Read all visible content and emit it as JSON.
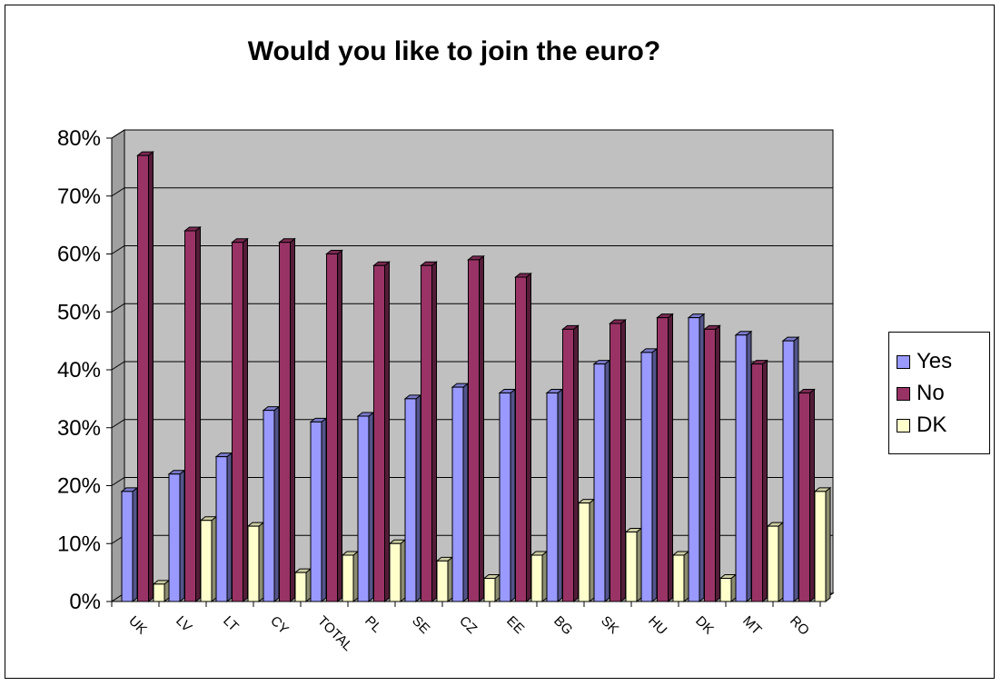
{
  "chart_data": {
    "type": "bar",
    "title": "Would you like to join the euro?",
    "xlabel": "",
    "ylabel": "",
    "categories": [
      "UK",
      "LV",
      "LT",
      "CY",
      "TOTAL",
      "PL",
      "SE",
      "CZ",
      "EE",
      "BG",
      "SK",
      "HU",
      "DK",
      "MT",
      "RO"
    ],
    "series": [
      {
        "name": "Yes",
        "color": "#9999ff",
        "values": [
          19,
          22,
          25,
          33,
          31,
          32,
          35,
          37,
          36,
          36,
          41,
          43,
          49,
          46,
          45
        ]
      },
      {
        "name": "No",
        "color": "#993366",
        "values": [
          77,
          64,
          62,
          62,
          60,
          58,
          58,
          59,
          56,
          47,
          48,
          49,
          47,
          41,
          36
        ]
      },
      {
        "name": "DK",
        "color": "#ffffcc",
        "values": [
          3,
          14,
          13,
          5,
          8,
          10,
          7,
          4,
          8,
          17,
          12,
          8,
          4,
          13,
          19
        ]
      }
    ],
    "ylim": [
      0,
      80
    ],
    "yticks": [
      "0%",
      "10%",
      "20%",
      "30%",
      "40%",
      "50%",
      "60%",
      "70%",
      "80%"
    ],
    "grid": true,
    "legend_position": "right",
    "plot_background": "#c0c0c0"
  }
}
